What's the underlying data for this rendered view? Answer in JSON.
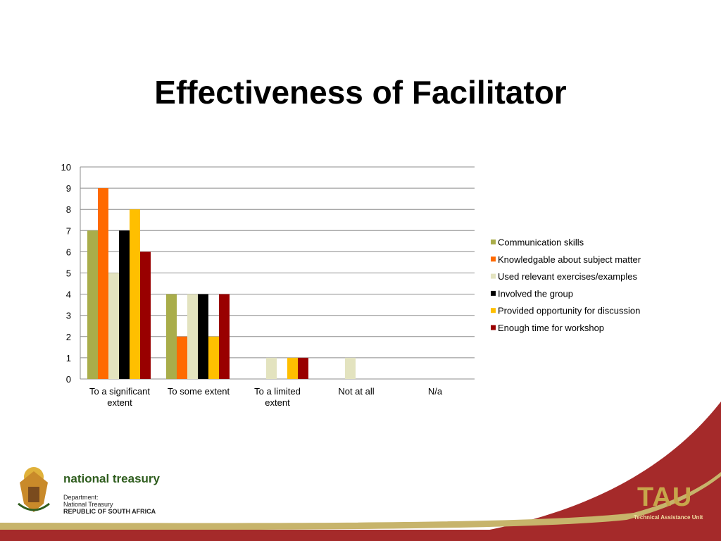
{
  "slide": {
    "title": "Effectiveness of Facilitator"
  },
  "footer": {
    "org_name": "national treasury",
    "org_line1": "Department:",
    "org_line2": "National Treasury",
    "org_line3": "REPUBLIC OF SOUTH AFRICA",
    "tau_logo": "TAU",
    "tau_subtitle": "Technical Assistance Unit"
  },
  "colors": {
    "accent_red": "#a52a2a",
    "accent_gold": "#c7a64b"
  },
  "chart_data": {
    "type": "bar",
    "categories": [
      "To a significant extent",
      "To some extent",
      "To a limited extent",
      "Not at all",
      "N/a"
    ],
    "category_lines": [
      [
        "To a significant",
        "extent"
      ],
      [
        "To some extent"
      ],
      [
        "To a limited",
        "extent"
      ],
      [
        "Not at all"
      ],
      [
        "N/a"
      ]
    ],
    "series": [
      {
        "name": "Communication skills",
        "color": "#a9ad4a",
        "values": [
          7,
          4,
          0,
          0,
          0
        ]
      },
      {
        "name": "Knowledgable about subject matter",
        "color": "#ff6a00",
        "values": [
          9,
          2,
          0,
          0,
          0
        ]
      },
      {
        "name": "Used relevant exercises/examples",
        "color": "#e3e3bf",
        "values": [
          5,
          4,
          1,
          1,
          0
        ]
      },
      {
        "name": "Involved the group",
        "color": "#000000",
        "values": [
          7,
          4,
          0,
          0,
          0
        ]
      },
      {
        "name": "Provided opportunity for discussion",
        "color": "#ffbf00",
        "values": [
          8,
          2,
          1,
          0,
          0
        ]
      },
      {
        "name": "Enough time for workshop",
        "color": "#990000",
        "values": [
          6,
          4,
          1,
          0,
          0
        ]
      }
    ],
    "ylim": [
      0,
      10
    ],
    "yticks": [
      0,
      1,
      2,
      3,
      4,
      5,
      6,
      7,
      8,
      9,
      10
    ],
    "grid": true,
    "legend": "right",
    "title": "",
    "xlabel": "",
    "ylabel": ""
  }
}
